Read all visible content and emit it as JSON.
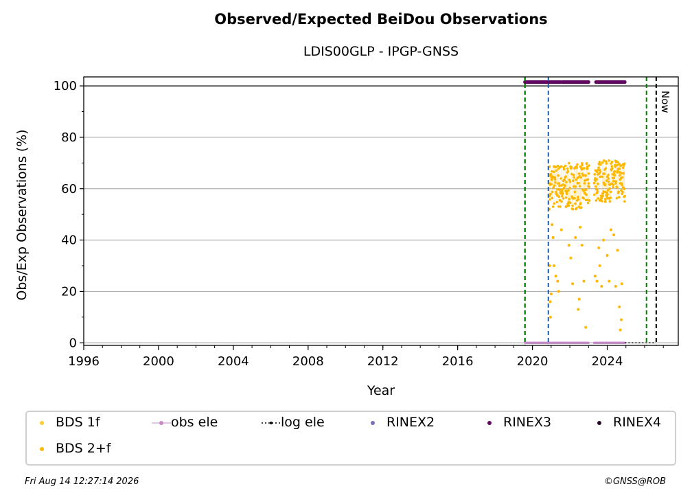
{
  "title": "Observed/Expected BeiDou Observations",
  "subtitle": "LDIS00GLP - IPGP-GNSS",
  "footer_left": "Fri Aug 14 12:27:14 2026",
  "footer_right": "©GNSS@ROB",
  "chart_data": {
    "type": "scatter",
    "xlabel": "Year",
    "ylabel": "Obs/Exp Observations (%)",
    "xlim": [
      1996.0,
      2027.8
    ],
    "ylim": [
      -1,
      103.5
    ],
    "x_ticks": [
      "1996",
      "2000",
      "2004",
      "2008",
      "2012",
      "2016",
      "2020",
      "2024"
    ],
    "y_ticks": [
      "0",
      "20",
      "40",
      "60",
      "80",
      "100"
    ],
    "grid": "horizontal",
    "hline": 100,
    "vlines": [
      {
        "x": 2019.6,
        "color": "#cc0000",
        "style": "dashed"
      },
      {
        "x": 2019.6,
        "color": "#008000",
        "style": "dashed"
      },
      {
        "x": 2020.85,
        "color": "#1f5fa8",
        "style": "dashed"
      },
      {
        "x": 2026.1,
        "color": "#008000",
        "style": "dashed"
      },
      {
        "x": 2026.62,
        "color": "#000000",
        "style": "dashed",
        "label": "Now"
      }
    ],
    "rinex3_segments": [
      [
        2019.6,
        2021.5
      ],
      [
        2021.6,
        2023.0
      ],
      [
        2023.4,
        2024.95
      ]
    ],
    "obs_ele_segments": [
      [
        2019.6,
        2023.0
      ],
      [
        2023.3,
        2024.95
      ]
    ],
    "log_ele_segments": [
      [
        2024.95,
        2026.62
      ]
    ],
    "bds_2f_bands": [
      {
        "x_start": 2020.9,
        "x_end": 2023.05,
        "typical_min": 52,
        "typical_max": 70
      },
      {
        "x_start": 2023.3,
        "x_end": 2024.95,
        "typical_min": 55,
        "typical_max": 71
      }
    ],
    "bds_2f_low_points": [
      [
        2020.9,
        62
      ],
      [
        2020.92,
        30
      ],
      [
        2020.95,
        16
      ],
      [
        2020.97,
        10
      ],
      [
        2021.0,
        19
      ],
      [
        2021.05,
        46
      ],
      [
        2021.1,
        41
      ],
      [
        2021.15,
        30
      ],
      [
        2021.25,
        26
      ],
      [
        2021.35,
        24
      ],
      [
        2021.4,
        20
      ],
      [
        2021.55,
        44
      ],
      [
        2021.8,
        53
      ],
      [
        2021.95,
        38
      ],
      [
        2022.05,
        33
      ],
      [
        2022.15,
        23
      ],
      [
        2022.3,
        41
      ],
      [
        2022.45,
        13
      ],
      [
        2022.5,
        17
      ],
      [
        2022.55,
        45
      ],
      [
        2022.65,
        38
      ],
      [
        2022.75,
        24
      ],
      [
        2022.85,
        6
      ],
      [
        2023.35,
        26
      ],
      [
        2023.45,
        24
      ],
      [
        2023.55,
        37
      ],
      [
        2023.6,
        30
      ],
      [
        2023.7,
        22
      ],
      [
        2023.8,
        40
      ],
      [
        2023.9,
        55
      ],
      [
        2024.0,
        34
      ],
      [
        2024.1,
        24
      ],
      [
        2024.2,
        44
      ],
      [
        2024.35,
        42
      ],
      [
        2024.45,
        22
      ],
      [
        2024.55,
        36
      ],
      [
        2024.65,
        14
      ],
      [
        2024.7,
        5
      ],
      [
        2024.75,
        9
      ],
      [
        2024.78,
        23
      ]
    ],
    "series": [
      {
        "name": "BDS 1f",
        "color": "#ffcc33",
        "marker": "dot"
      },
      {
        "name": "BDS 2+f",
        "color": "#ffb800",
        "marker": "dot"
      },
      {
        "name": "obs ele",
        "color": "#c48ac8",
        "marker": "line-dot"
      },
      {
        "name": "log ele",
        "color": "#000000",
        "marker": "dotted-line"
      },
      {
        "name": "RINEX2",
        "color": "#7a6fb8",
        "marker": "dot"
      },
      {
        "name": "RINEX3",
        "color": "#5f0a5f",
        "marker": "dot"
      },
      {
        "name": "RINEX4",
        "color": "#2a0a2a",
        "marker": "dot"
      }
    ]
  }
}
